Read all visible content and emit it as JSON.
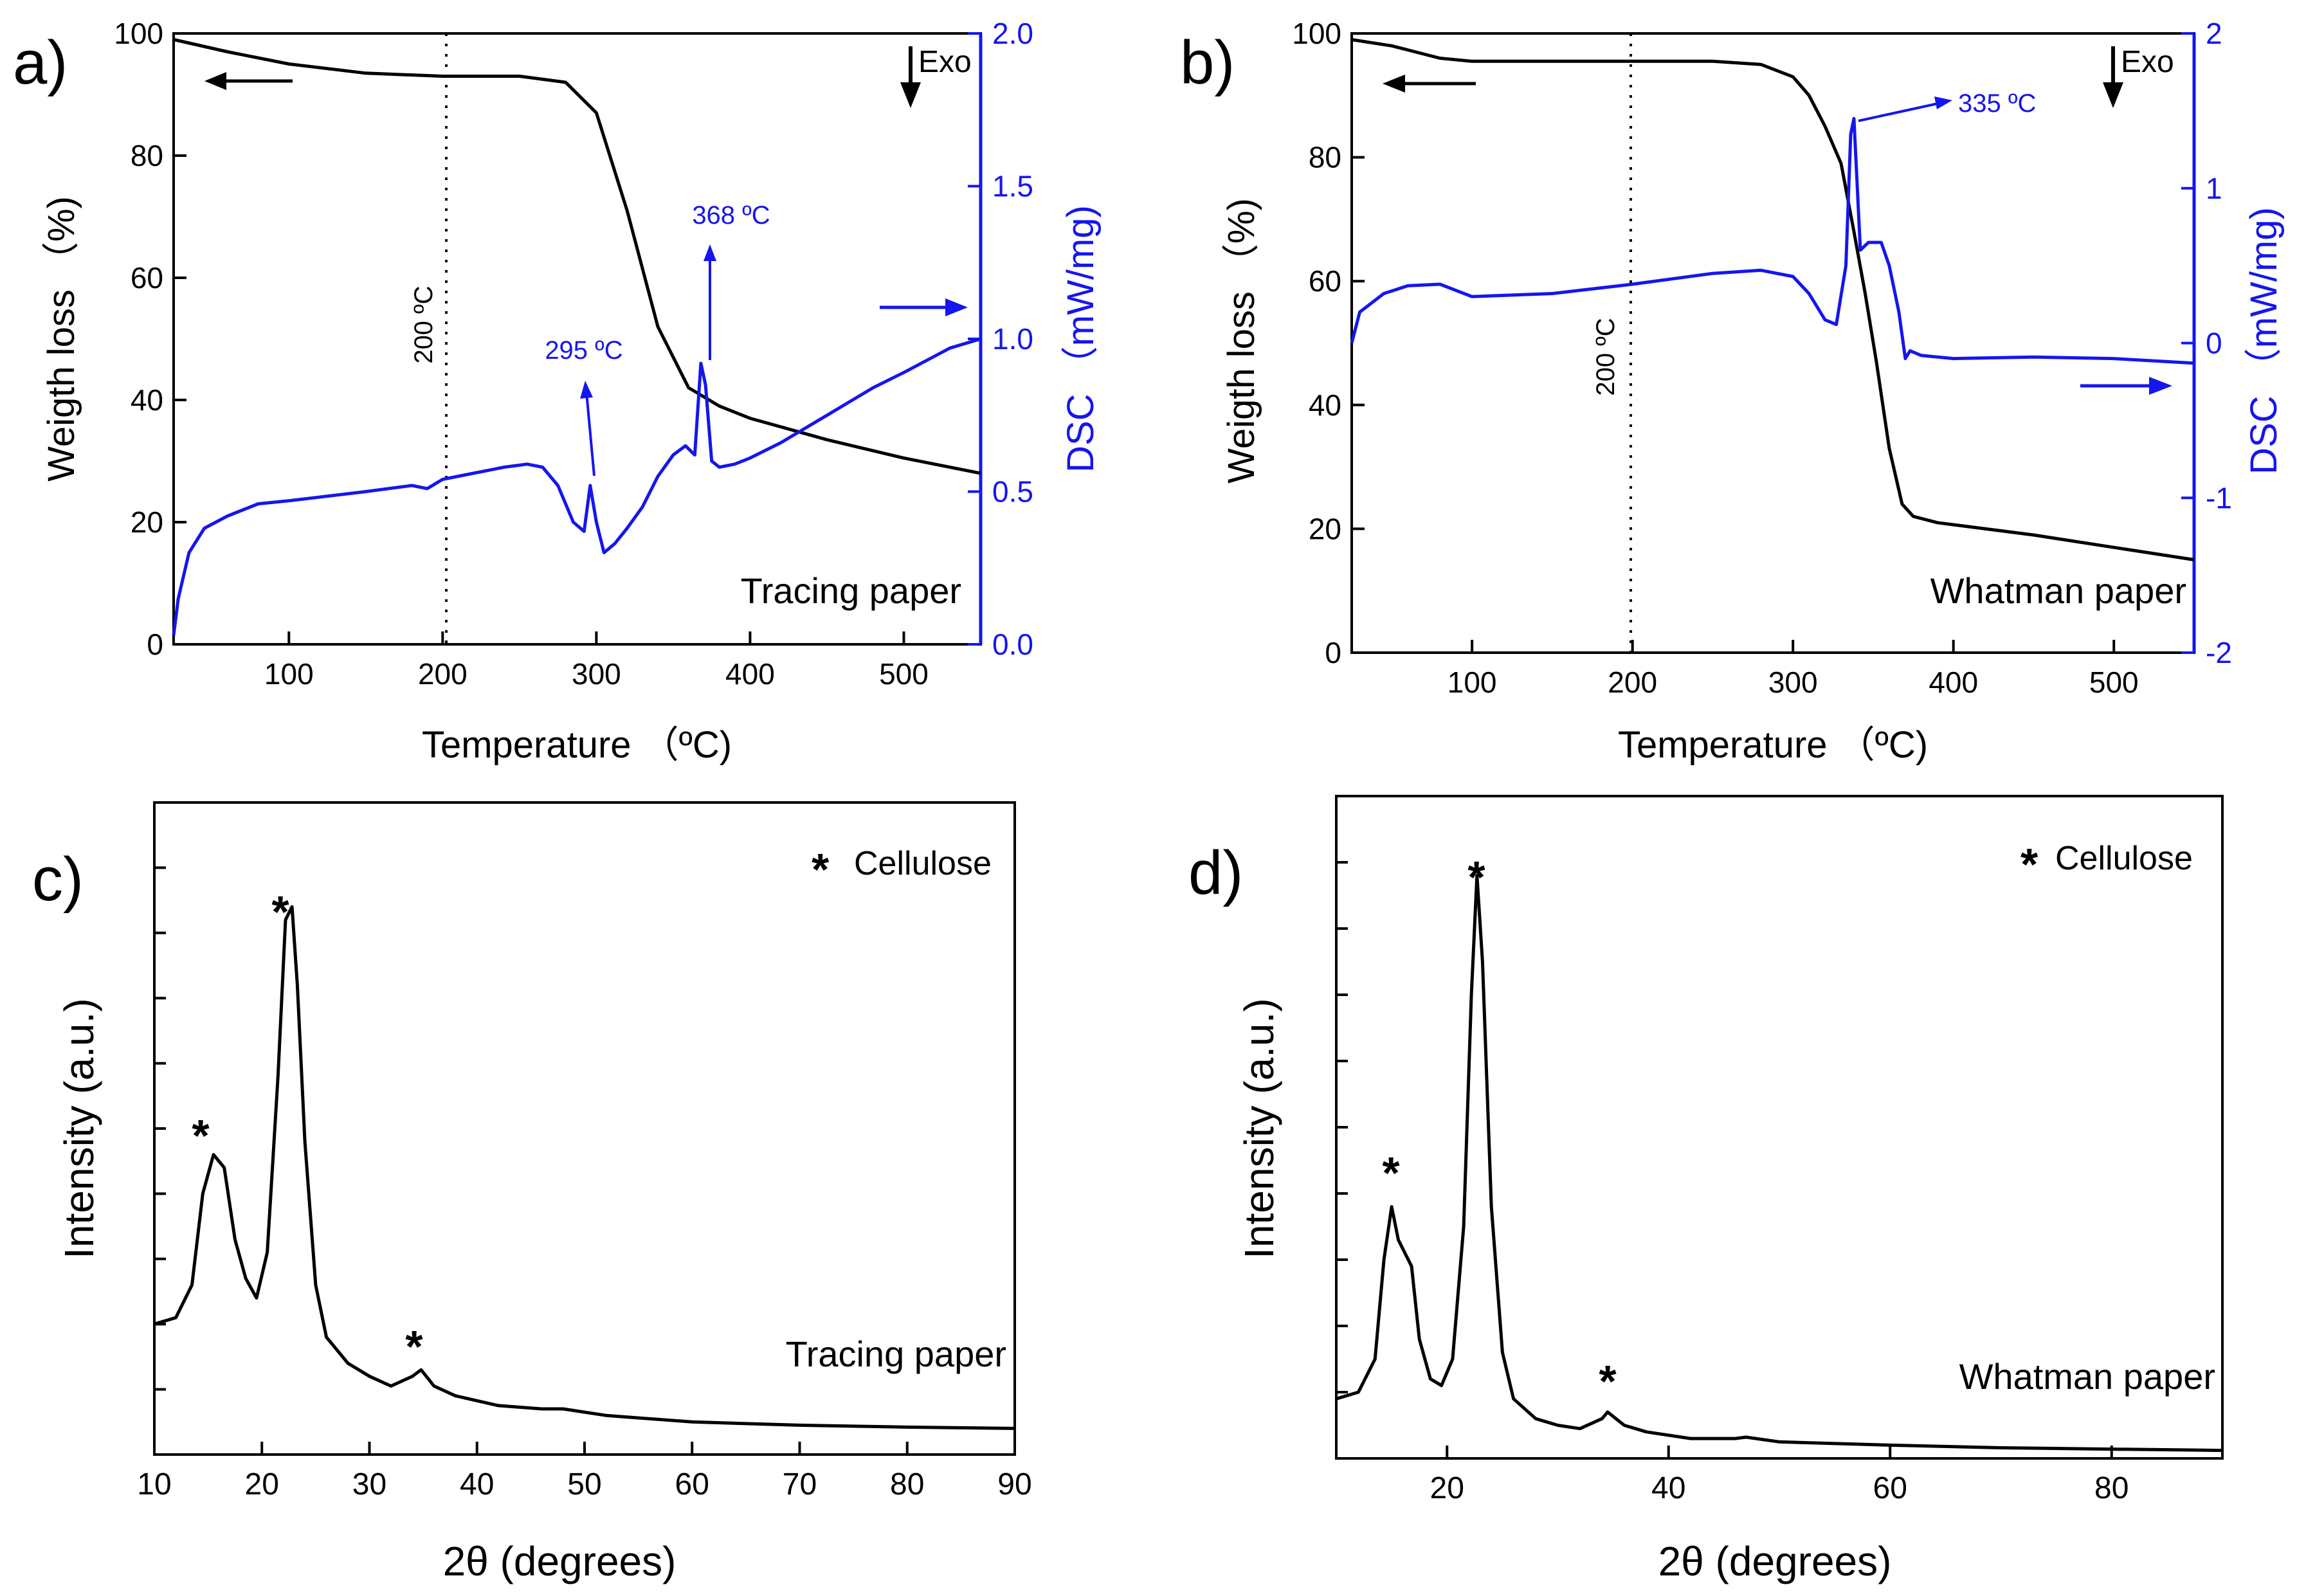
{
  "figure": {
    "panel_labels": [
      "a)",
      "b)",
      "c)",
      "d)"
    ],
    "colors": {
      "weight": "#000000",
      "dsc": "#1515f0",
      "axis": "#000000"
    }
  },
  "chart_data": [
    {
      "panel": "a)",
      "type": "line",
      "xlabel": "Temperature （ºC)",
      "ylabel": "Weigth loss （%)",
      "y2label": "DSC （mW/mg)",
      "xlim": [
        25,
        550
      ],
      "ylim": [
        0,
        100
      ],
      "y2lim": [
        0,
        2.0
      ],
      "xticks": [
        "100",
        "200",
        "300",
        "400",
        "500"
      ],
      "yticks": [
        "0",
        "20",
        "40",
        "60",
        "80",
        "100"
      ],
      "y2ticks": [
        "0.0",
        "0.5",
        "1.0",
        "1.5",
        "2.0"
      ],
      "series": [
        {
          "axis": "left",
          "color": "#000000",
          "x": [
            25,
            60,
            100,
            150,
            200,
            250,
            280,
            300,
            320,
            340,
            360,
            380,
            400,
            450,
            500,
            550
          ],
          "y": [
            99,
            97,
            95,
            93.5,
            93,
            93,
            92,
            87,
            71,
            52,
            42,
            39,
            37,
            33.5,
            30.5,
            28
          ]
        },
        {
          "axis": "right",
          "color": "#1515f0",
          "x": [
            25,
            28,
            35,
            45,
            60,
            80,
            100,
            150,
            180,
            190,
            200,
            220,
            240,
            255,
            265,
            275,
            285,
            292,
            296,
            300,
            305,
            312,
            320,
            330,
            340,
            350,
            358,
            364,
            368,
            371,
            375,
            380,
            390,
            400,
            420,
            450,
            480,
            500,
            530,
            550
          ],
          "y": [
            0.03,
            0.15,
            0.3,
            0.38,
            0.42,
            0.46,
            0.47,
            0.5,
            0.52,
            0.51,
            0.54,
            0.56,
            0.58,
            0.59,
            0.58,
            0.52,
            0.4,
            0.37,
            0.52,
            0.4,
            0.3,
            0.33,
            0.38,
            0.45,
            0.55,
            0.62,
            0.65,
            0.62,
            0.92,
            0.85,
            0.6,
            0.58,
            0.59,
            0.61,
            0.66,
            0.75,
            0.84,
            0.89,
            0.97,
            1.0
          ]
        }
      ],
      "annotations": {
        "temp_line": "200 ºC",
        "peak1": "295 ºC",
        "peak2": "368 ºC",
        "exo": "Exo",
        "sample": "Tracing paper"
      }
    },
    {
      "panel": "b)",
      "type": "line",
      "xlabel": "Temperature （ºC)",
      "ylabel": "Weigth loss （%)",
      "y2label": "DSC （mW/mg)",
      "xlim": [
        25,
        550
      ],
      "ylim": [
        0,
        100
      ],
      "y2lim": [
        -2,
        2
      ],
      "xticks": [
        "100",
        "200",
        "300",
        "400",
        "500"
      ],
      "yticks": [
        "0",
        "20",
        "40",
        "60",
        "80",
        "100"
      ],
      "y2ticks": [
        "-2",
        "-1",
        "0",
        "1",
        "2"
      ],
      "series": [
        {
          "axis": "left",
          "color": "#000000",
          "x": [
            25,
            50,
            80,
            100,
            150,
            200,
            250,
            280,
            300,
            310,
            320,
            330,
            338,
            345,
            352,
            360,
            368,
            375,
            390,
            450,
            500,
            550
          ],
          "y": [
            99,
            98,
            96,
            95.5,
            95.5,
            95.5,
            95.5,
            95,
            93,
            90,
            85,
            79,
            68,
            58,
            47,
            33,
            24,
            22,
            21,
            19,
            17,
            15
          ]
        },
        {
          "axis": "right",
          "color": "#1515f0",
          "x": [
            25,
            30,
            45,
            60,
            80,
            100,
            150,
            200,
            250,
            280,
            300,
            310,
            320,
            327,
            333,
            336,
            338,
            342,
            347,
            355,
            360,
            366,
            370,
            373,
            380,
            400,
            450,
            500,
            550
          ],
          "y": [
            0.0,
            0.2,
            0.32,
            0.37,
            0.38,
            0.3,
            0.32,
            0.38,
            0.45,
            0.47,
            0.43,
            0.32,
            0.15,
            0.12,
            0.5,
            1.35,
            1.45,
            0.6,
            0.65,
            0.65,
            0.5,
            0.2,
            -0.1,
            -0.05,
            -0.08,
            -0.1,
            -0.09,
            -0.1,
            -0.13
          ]
        }
      ],
      "annotations": {
        "temp_line": "200 ºC",
        "peak1": "335 ºC",
        "exo": "Exo",
        "sample": "Whatman paper"
      }
    },
    {
      "panel": "c)",
      "type": "line",
      "xlabel": "2θ (degrees)",
      "ylabel": "Intensity (a.u.)",
      "xlim": [
        10,
        90
      ],
      "ylim": [
        0,
        10
      ],
      "xticks": [
        "10",
        "20",
        "30",
        "40",
        "50",
        "60",
        "70",
        "80",
        "90"
      ],
      "series": [
        {
          "color": "#000000",
          "x": [
            10,
            12,
            13.5,
            14.5,
            15.5,
            16.5,
            17.5,
            18.5,
            19.5,
            20.5,
            21.5,
            22.2,
            22.8,
            23.3,
            24,
            25,
            26,
            28,
            30,
            32,
            34,
            34.8,
            36,
            38,
            42,
            46,
            48,
            52,
            60,
            70,
            80,
            90
          ],
          "y": [
            2.0,
            2.1,
            2.6,
            4.0,
            4.6,
            4.4,
            3.3,
            2.7,
            2.4,
            3.1,
            5.8,
            8.2,
            8.4,
            7.2,
            4.8,
            2.6,
            1.8,
            1.4,
            1.2,
            1.05,
            1.2,
            1.3,
            1.05,
            0.9,
            0.75,
            0.7,
            0.7,
            0.6,
            0.5,
            0.45,
            0.42,
            0.4
          ]
        }
      ],
      "annotations": {
        "legend": "Cellulose",
        "legend_marker": "*",
        "star_marker": "*",
        "sample": "Tracing paper"
      }
    },
    {
      "panel": "d)",
      "type": "line",
      "xlabel": "2θ (degrees)",
      "ylabel": "Intensity (a.u.)",
      "xlim": [
        10,
        90
      ],
      "ylim": [
        0,
        10
      ],
      "xticks": [
        "20",
        "40",
        "60",
        "80"
      ],
      "series": [
        {
          "color": "#000000",
          "x": [
            10,
            12,
            13.5,
            14.3,
            15,
            15.6,
            16.2,
            16.8,
            17.5,
            18.5,
            19.5,
            20.5,
            21.5,
            22.2,
            22.7,
            23.2,
            24,
            25,
            26,
            28,
            30,
            32,
            34,
            34.5,
            36,
            38,
            42,
            46,
            47,
            50,
            60,
            70,
            80,
            90
          ],
          "y": [
            0.9,
            1.0,
            1.5,
            3.0,
            3.8,
            3.3,
            3.1,
            2.9,
            1.8,
            1.2,
            1.1,
            1.5,
            3.5,
            7.0,
            8.8,
            7.5,
            3.8,
            1.6,
            0.9,
            0.6,
            0.5,
            0.45,
            0.6,
            0.7,
            0.5,
            0.4,
            0.3,
            0.3,
            0.32,
            0.25,
            0.2,
            0.16,
            0.14,
            0.12
          ]
        }
      ],
      "annotations": {
        "legend": "Cellulose",
        "legend_marker": "*",
        "star_marker": "*",
        "sample": "Whatman paper"
      }
    }
  ]
}
